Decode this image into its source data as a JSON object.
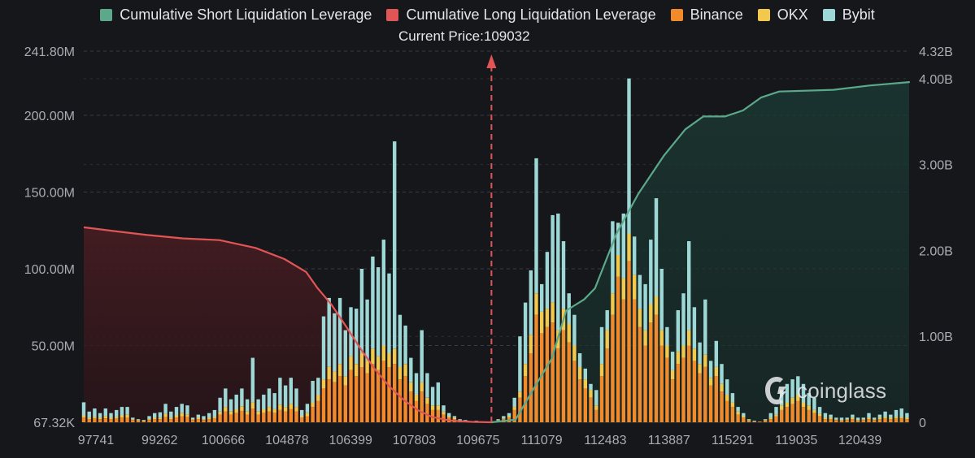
{
  "legend": [
    {
      "label": "Cumulative Short Liquidation Leverage",
      "color": "#5ba88a"
    },
    {
      "label": "Cumulative Long Liquidation Leverage",
      "color": "#e05555"
    },
    {
      "label": "Binance",
      "color": "#f08a2b"
    },
    {
      "label": "OKX",
      "color": "#f2c94c"
    },
    {
      "label": "Bybit",
      "color": "#9ed8d6"
    }
  ],
  "current_price_label": "Current Price:109032",
  "watermark_text": "coinglass",
  "chart_data": {
    "type": "bar",
    "left_axis": {
      "labels": [
        "241.80M",
        "200.00M",
        "150.00M",
        "100.00M",
        "50.00M",
        "67.32K"
      ],
      "range": [
        0,
        241.8
      ],
      "unit": "M"
    },
    "right_axis": {
      "labels": [
        "4.32B",
        "4.00B",
        "3.00B",
        "2.00B",
        "1.00B",
        "0"
      ],
      "range": [
        0,
        4.32
      ],
      "unit": "B"
    },
    "x_tick_labels": [
      "97741",
      "99262",
      "100666",
      "104878",
      "106399",
      "107803",
      "109675",
      "111079",
      "112483",
      "113887",
      "115291",
      "119035",
      "120439"
    ],
    "price_range": [
      97741,
      120600
    ],
    "current_price": 109032,
    "bars": [
      {
        "price": 97741,
        "binance": 3,
        "okx": 1.5,
        "bybit": 8.5
      },
      {
        "price": 97892,
        "binance": 2,
        "okx": 1,
        "bybit": 4
      },
      {
        "price": 98043,
        "binance": 2.5,
        "okx": 1,
        "bybit": 5.5
      },
      {
        "price": 98194,
        "binance": 2,
        "okx": 1,
        "bybit": 3
      },
      {
        "price": 98345,
        "binance": 2.5,
        "okx": 1.5,
        "bybit": 5
      },
      {
        "price": 98496,
        "binance": 2,
        "okx": 1,
        "bybit": 3
      },
      {
        "price": 98647,
        "binance": 2.5,
        "okx": 1,
        "bybit": 4.5
      },
      {
        "price": 98798,
        "binance": 3,
        "okx": 1.5,
        "bybit": 5.5
      },
      {
        "price": 98949,
        "binance": 3,
        "okx": 2,
        "bybit": 5
      },
      {
        "price": 99100,
        "binance": 1.5,
        "okx": 0.5,
        "bybit": 1
      },
      {
        "price": 99251,
        "binance": 1,
        "okx": 0.5,
        "bybit": 0.5
      },
      {
        "price": 99402,
        "binance": 0.5,
        "okx": 0.5,
        "bybit": 0.5
      },
      {
        "price": 99553,
        "binance": 1.5,
        "okx": 0.5,
        "bybit": 2
      },
      {
        "price": 99704,
        "binance": 2,
        "okx": 1,
        "bybit": 3
      },
      {
        "price": 99855,
        "binance": 2,
        "okx": 1,
        "bybit": 3.5
      },
      {
        "price": 100006,
        "binance": 3.5,
        "okx": 2,
        "bybit": 6.5
      },
      {
        "price": 100157,
        "binance": 2,
        "okx": 1,
        "bybit": 4
      },
      {
        "price": 100308,
        "binance": 3,
        "okx": 1.5,
        "bybit": 5.5
      },
      {
        "price": 100459,
        "binance": 4,
        "okx": 2,
        "bybit": 6
      },
      {
        "price": 100610,
        "binance": 3.5,
        "okx": 1.5,
        "bybit": 6
      },
      {
        "price": 100761,
        "binance": 1.5,
        "okx": 0.5,
        "bybit": 1
      },
      {
        "price": 100912,
        "binance": 2,
        "okx": 1,
        "bybit": 2
      },
      {
        "price": 101063,
        "binance": 1.5,
        "okx": 0.5,
        "bybit": 2
      },
      {
        "price": 101214,
        "binance": 2,
        "okx": 1,
        "bybit": 3
      },
      {
        "price": 101365,
        "binance": 2.5,
        "okx": 1,
        "bybit": 4.5
      },
      {
        "price": 101516,
        "binance": 5,
        "okx": 2,
        "bybit": 9
      },
      {
        "price": 101667,
        "binance": 7,
        "okx": 3,
        "bybit": 12
      },
      {
        "price": 101818,
        "binance": 5,
        "okx": 2,
        "bybit": 8
      },
      {
        "price": 101969,
        "binance": 6,
        "okx": 2.5,
        "bybit": 9.5
      },
      {
        "price": 102120,
        "binance": 7.5,
        "okx": 3,
        "bybit": 11.5
      },
      {
        "price": 102271,
        "binance": 5,
        "okx": 2,
        "bybit": 8
      },
      {
        "price": 102422,
        "binance": 9,
        "okx": 4,
        "bybit": 29
      },
      {
        "price": 102573,
        "binance": 5,
        "okx": 2,
        "bybit": 8
      },
      {
        "price": 102724,
        "binance": 6,
        "okx": 2.5,
        "bybit": 9.5
      },
      {
        "price": 102875,
        "binance": 7,
        "okx": 3,
        "bybit": 12
      },
      {
        "price": 103026,
        "binance": 6,
        "okx": 2.5,
        "bybit": 10.5
      },
      {
        "price": 103177,
        "binance": 8,
        "okx": 3.5,
        "bybit": 17.5
      },
      {
        "price": 103328,
        "binance": 7,
        "okx": 3,
        "bybit": 14
      },
      {
        "price": 103479,
        "binance": 8.5,
        "okx": 3.5,
        "bybit": 17
      },
      {
        "price": 103630,
        "binance": 7,
        "okx": 3,
        "bybit": 12
      },
      {
        "price": 103781,
        "binance": 3,
        "okx": 1,
        "bybit": 4
      },
      {
        "price": 103932,
        "binance": 4,
        "okx": 2,
        "bybit": 6
      },
      {
        "price": 104083,
        "binance": 10,
        "okx": 3,
        "bybit": 14
      },
      {
        "price": 104234,
        "binance": 14,
        "okx": 4,
        "bybit": 11
      },
      {
        "price": 104385,
        "binance": 22,
        "okx": 6,
        "bybit": 41
      },
      {
        "price": 104536,
        "binance": 28,
        "okx": 8,
        "bybit": 45
      },
      {
        "price": 104687,
        "binance": 26,
        "okx": 7,
        "bybit": 38
      },
      {
        "price": 104838,
        "binance": 30,
        "okx": 8,
        "bybit": 43
      },
      {
        "price": 104989,
        "binance": 24,
        "okx": 6,
        "bybit": 30
      },
      {
        "price": 105140,
        "binance": 34,
        "okx": 9,
        "bybit": 32
      },
      {
        "price": 105291,
        "binance": 30,
        "okx": 8,
        "bybit": 36
      },
      {
        "price": 105442,
        "binance": 36,
        "okx": 9,
        "bybit": 55
      },
      {
        "price": 105593,
        "binance": 32,
        "okx": 8,
        "bybit": 40
      },
      {
        "price": 105744,
        "binance": 38,
        "okx": 10,
        "bybit": 60
      },
      {
        "price": 105895,
        "binance": 34,
        "okx": 9,
        "bybit": 58
      },
      {
        "price": 106046,
        "binance": 40,
        "okx": 10,
        "bybit": 69
      },
      {
        "price": 106197,
        "binance": 36,
        "okx": 9,
        "bybit": 52
      },
      {
        "price": 106348,
        "binance": 38,
        "okx": 10,
        "bybit": 135
      },
      {
        "price": 106499,
        "binance": 28,
        "okx": 8,
        "bybit": 34
      },
      {
        "price": 106650,
        "binance": 30,
        "okx": 8,
        "bybit": 25
      },
      {
        "price": 106801,
        "binance": 20,
        "okx": 6,
        "bybit": 16
      },
      {
        "price": 106952,
        "binance": 14,
        "okx": 4,
        "bybit": 14
      },
      {
        "price": 107103,
        "binance": 20,
        "okx": 6,
        "bybit": 34
      },
      {
        "price": 107254,
        "binance": 12,
        "okx": 4,
        "bybit": 16
      },
      {
        "price": 107405,
        "binance": 8,
        "okx": 3,
        "bybit": 12
      },
      {
        "price": 107556,
        "binance": 8,
        "okx": 3,
        "bybit": 15
      },
      {
        "price": 107707,
        "binance": 5,
        "okx": 2,
        "bybit": 4
      },
      {
        "price": 107858,
        "binance": 3,
        "okx": 1,
        "bybit": 2
      },
      {
        "price": 108009,
        "binance": 2,
        "okx": 1,
        "bybit": 1
      },
      {
        "price": 108160,
        "binance": 0.5,
        "okx": 0.5,
        "bybit": 1
      },
      {
        "price": 108311,
        "binance": 0.5,
        "okx": 0.5,
        "bybit": 0.5
      },
      {
        "price": 108462,
        "binance": 0.5,
        "okx": 0,
        "bybit": 0
      },
      {
        "price": 108613,
        "binance": 0.5,
        "okx": 0,
        "bybit": 0.5
      },
      {
        "price": 108764,
        "binance": 0.5,
        "okx": 0,
        "bybit": 0
      },
      {
        "price": 108915,
        "binance": 0.5,
        "okx": 0,
        "bybit": 0
      },
      {
        "price": 109066,
        "binance": 0.5,
        "okx": 0,
        "bybit": 0
      },
      {
        "price": 109217,
        "binance": 1,
        "okx": 0.5,
        "bybit": 0.5
      },
      {
        "price": 109368,
        "binance": 2,
        "okx": 0.5,
        "bybit": 1.5
      },
      {
        "price": 109519,
        "binance": 3,
        "okx": 1,
        "bybit": 2
      },
      {
        "price": 109670,
        "binance": 8,
        "okx": 2,
        "bybit": 6
      },
      {
        "price": 109821,
        "binance": 16,
        "okx": 4,
        "bybit": 36
      },
      {
        "price": 109972,
        "binance": 30,
        "okx": 8,
        "bybit": 40
      },
      {
        "price": 110123,
        "binance": 45,
        "okx": 12,
        "bybit": 42
      },
      {
        "price": 110274,
        "binance": 70,
        "okx": 14,
        "bybit": 88
      },
      {
        "price": 110425,
        "binance": 58,
        "okx": 14,
        "bybit": 18
      },
      {
        "price": 110576,
        "binance": 62,
        "okx": 12,
        "bybit": 37
      },
      {
        "price": 110727,
        "binance": 65,
        "okx": 13,
        "bybit": 57
      },
      {
        "price": 110878,
        "binance": 48,
        "okx": 12,
        "bybit": 76
      },
      {
        "price": 111029,
        "binance": 60,
        "okx": 14,
        "bybit": 44
      },
      {
        "price": 111180,
        "binance": 52,
        "okx": 12,
        "bybit": 20
      },
      {
        "price": 111331,
        "binance": 40,
        "okx": 10,
        "bybit": 20
      },
      {
        "price": 111482,
        "binance": 28,
        "okx": 8,
        "bybit": 9
      },
      {
        "price": 111633,
        "binance": 22,
        "okx": 6,
        "bybit": 7
      },
      {
        "price": 111784,
        "binance": 16,
        "okx": 5,
        "bybit": 4
      },
      {
        "price": 111935,
        "binance": 8,
        "okx": 3,
        "bybit": 10
      },
      {
        "price": 112086,
        "binance": 30,
        "okx": 8,
        "bybit": 24
      },
      {
        "price": 112237,
        "binance": 48,
        "okx": 12,
        "bybit": 13
      },
      {
        "price": 112388,
        "binance": 70,
        "okx": 14,
        "bybit": 47
      },
      {
        "price": 112539,
        "binance": 95,
        "okx": 14,
        "bybit": 21
      },
      {
        "price": 112690,
        "binance": 80,
        "okx": 14,
        "bybit": 42
      },
      {
        "price": 112841,
        "binance": 105,
        "okx": 18,
        "bybit": 101
      },
      {
        "price": 112992,
        "binance": 80,
        "okx": 16,
        "bybit": 25
      },
      {
        "price": 113143,
        "binance": 62,
        "okx": 12,
        "bybit": 22
      },
      {
        "price": 113294,
        "binance": 50,
        "okx": 10,
        "bybit": 30
      },
      {
        "price": 113445,
        "binance": 65,
        "okx": 12,
        "bybit": 42
      },
      {
        "price": 113596,
        "binance": 70,
        "okx": 12,
        "bybit": 64
      },
      {
        "price": 113747,
        "binance": 50,
        "okx": 10,
        "bybit": 40
      },
      {
        "price": 113898,
        "binance": 42,
        "okx": 8,
        "bybit": 12
      },
      {
        "price": 114049,
        "binance": 28,
        "okx": 6,
        "bybit": 12
      },
      {
        "price": 114200,
        "binance": 38,
        "okx": 8,
        "bybit": 27
      },
      {
        "price": 114351,
        "binance": 42,
        "okx": 8,
        "bybit": 34
      },
      {
        "price": 114502,
        "binance": 50,
        "okx": 10,
        "bybit": 58
      },
      {
        "price": 114653,
        "binance": 40,
        "okx": 8,
        "bybit": 27
      },
      {
        "price": 114804,
        "binance": 32,
        "okx": 6,
        "bybit": 14
      },
      {
        "price": 114955,
        "binance": 36,
        "okx": 8,
        "bybit": 36
      },
      {
        "price": 115106,
        "binance": 24,
        "okx": 5,
        "bybit": 11
      },
      {
        "price": 115257,
        "binance": 30,
        "okx": 6,
        "bybit": 17
      },
      {
        "price": 115408,
        "binance": 20,
        "okx": 5,
        "bybit": 13
      },
      {
        "price": 115559,
        "binance": 14,
        "okx": 4,
        "bybit": 10
      },
      {
        "price": 115710,
        "binance": 10,
        "okx": 3,
        "bybit": 6
      },
      {
        "price": 115861,
        "binance": 5,
        "okx": 2,
        "bybit": 3
      },
      {
        "price": 116012,
        "binance": 3,
        "okx": 1,
        "bybit": 2
      },
      {
        "price": 116163,
        "binance": 1,
        "okx": 0.5,
        "bybit": 0.5
      },
      {
        "price": 116314,
        "binance": 0.5,
        "okx": 0,
        "bybit": 0.5
      },
      {
        "price": 116465,
        "binance": 0.5,
        "okx": 0,
        "bybit": 0
      },
      {
        "price": 116616,
        "binance": 1,
        "okx": 0.5,
        "bybit": 0.5
      },
      {
        "price": 116767,
        "binance": 2,
        "okx": 1,
        "bybit": 3
      },
      {
        "price": 116918,
        "binance": 4,
        "okx": 1,
        "bybit": 5
      },
      {
        "price": 117069,
        "binance": 8,
        "okx": 3,
        "bybit": 10
      },
      {
        "price": 117220,
        "binance": 10,
        "okx": 3,
        "bybit": 12
      },
      {
        "price": 117371,
        "binance": 12,
        "okx": 4,
        "bybit": 12
      },
      {
        "price": 117522,
        "binance": 14,
        "okx": 4,
        "bybit": 12
      },
      {
        "price": 117673,
        "binance": 10,
        "okx": 3,
        "bybit": 12
      },
      {
        "price": 117824,
        "binance": 8,
        "okx": 3,
        "bybit": 8
      },
      {
        "price": 117975,
        "binance": 6,
        "okx": 2,
        "bybit": 8
      },
      {
        "price": 118126,
        "binance": 4,
        "okx": 1.5,
        "bybit": 4.5
      },
      {
        "price": 118277,
        "binance": 2,
        "okx": 1,
        "bybit": 3
      },
      {
        "price": 118428,
        "binance": 2,
        "okx": 1,
        "bybit": 2
      },
      {
        "price": 118579,
        "binance": 1.5,
        "okx": 0.5,
        "bybit": 1
      },
      {
        "price": 118730,
        "binance": 1,
        "okx": 0.5,
        "bybit": 1.5
      },
      {
        "price": 118881,
        "binance": 1.5,
        "okx": 0.5,
        "bybit": 1
      },
      {
        "price": 119032,
        "binance": 2,
        "okx": 1,
        "bybit": 2
      },
      {
        "price": 119183,
        "binance": 1,
        "okx": 0.5,
        "bybit": 1.5
      },
      {
        "price": 119334,
        "binance": 1.5,
        "okx": 0.5,
        "bybit": 1
      },
      {
        "price": 119485,
        "binance": 2,
        "okx": 1,
        "bybit": 3
      },
      {
        "price": 119636,
        "binance": 1.5,
        "okx": 0.5,
        "bybit": 1
      },
      {
        "price": 119787,
        "binance": 2,
        "okx": 1,
        "bybit": 2
      },
      {
        "price": 119938,
        "binance": 2.5,
        "okx": 1,
        "bybit": 3.5
      },
      {
        "price": 120089,
        "binance": 2,
        "okx": 1,
        "bybit": 2
      },
      {
        "price": 120240,
        "binance": 2.5,
        "okx": 1,
        "bybit": 4.5
      },
      {
        "price": 120391,
        "binance": 2.5,
        "okx": 1,
        "bybit": 5.5
      },
      {
        "price": 120542,
        "binance": 2,
        "okx": 1,
        "bybit": 3
      }
    ],
    "cumulative_long": [
      [
        97741,
        2.27
      ],
      [
        98500,
        2.23
      ],
      [
        99500,
        2.18
      ],
      [
        100500,
        2.14
      ],
      [
        101500,
        2.12
      ],
      [
        102500,
        2.03
      ],
      [
        103300,
        1.9
      ],
      [
        103900,
        1.75
      ],
      [
        104200,
        1.57
      ],
      [
        104600,
        1.37
      ],
      [
        105000,
        1.12
      ],
      [
        105400,
        0.86
      ],
      [
        105800,
        0.62
      ],
      [
        106200,
        0.42
      ],
      [
        106600,
        0.26
      ],
      [
        107000,
        0.14
      ],
      [
        107400,
        0.06
      ],
      [
        107900,
        0.02
      ],
      [
        108500,
        0.005
      ],
      [
        109032,
        0
      ]
    ],
    "cumulative_short": [
      [
        109032,
        0
      ],
      [
        109700,
        0.03
      ],
      [
        110200,
        0.39
      ],
      [
        110700,
        0.74
      ],
      [
        111100,
        1.3
      ],
      [
        111600,
        1.43
      ],
      [
        111900,
        1.56
      ],
      [
        112500,
        2.2
      ],
      [
        113100,
        2.66
      ],
      [
        113800,
        3.1
      ],
      [
        114400,
        3.41
      ],
      [
        114900,
        3.56
      ],
      [
        115500,
        3.56
      ],
      [
        116000,
        3.63
      ],
      [
        116500,
        3.78
      ],
      [
        117000,
        3.85
      ],
      [
        118500,
        3.87
      ],
      [
        119500,
        3.92
      ],
      [
        120600,
        3.96
      ]
    ]
  }
}
